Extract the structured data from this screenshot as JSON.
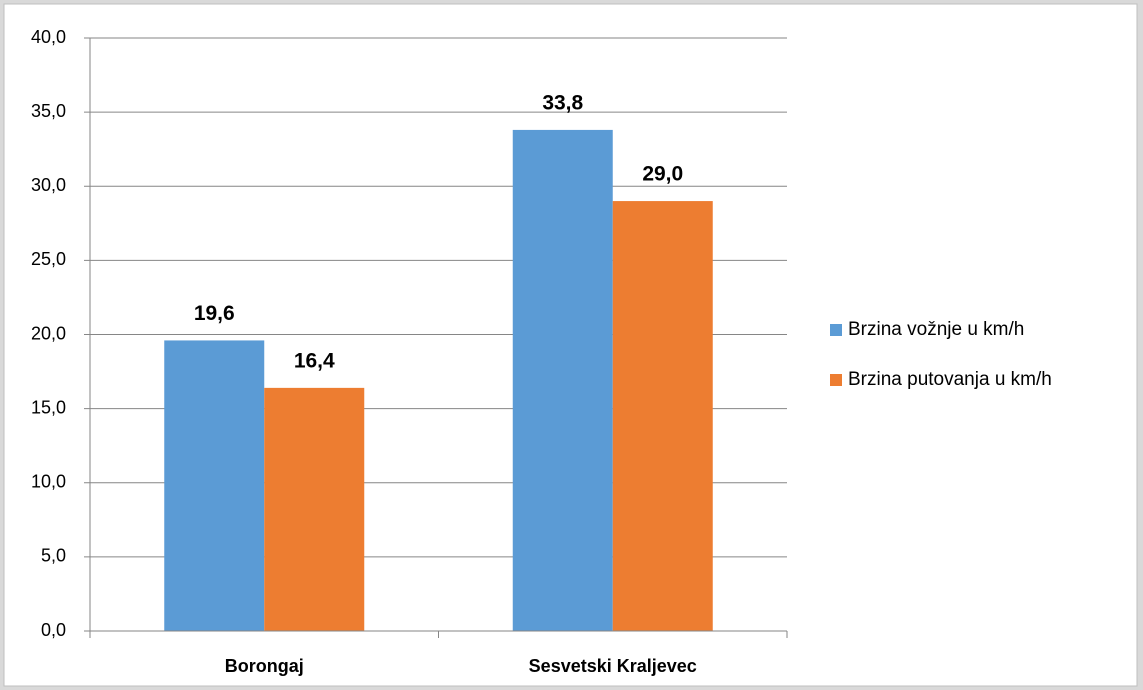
{
  "chart_data": {
    "type": "bar",
    "categories": [
      "Borongaj",
      "Sesvetski Kraljevec"
    ],
    "series": [
      {
        "name": "Brzina vožnje u km/h",
        "color": "#5b9bd5",
        "values": [
          19.6,
          33.8
        ],
        "value_labels": [
          "19,6",
          "33,8"
        ]
      },
      {
        "name": "Brzina putovanja u km/h",
        "color": "#ed7d31",
        "values": [
          16.4,
          29.0
        ],
        "value_labels": [
          "16,4",
          "29,0"
        ]
      }
    ],
    "ylim": [
      0,
      40
    ],
    "yticks": [
      {
        "value": 0,
        "label": "0,0"
      },
      {
        "value": 5,
        "label": "5,0"
      },
      {
        "value": 10,
        "label": "10,0"
      },
      {
        "value": 15,
        "label": "15,0"
      },
      {
        "value": 20,
        "label": "20,0"
      },
      {
        "value": 25,
        "label": "25,0"
      },
      {
        "value": 30,
        "label": "30,0"
      },
      {
        "value": 35,
        "label": "35,0"
      },
      {
        "value": 40,
        "label": "40,0"
      }
    ],
    "grid": true,
    "legend": "right"
  }
}
